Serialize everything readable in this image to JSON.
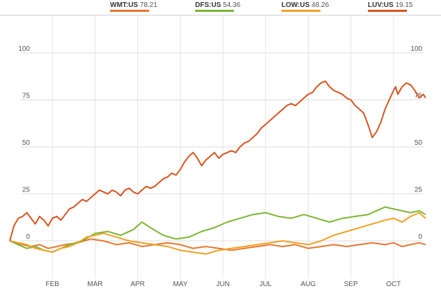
{
  "legend": {
    "items": [
      {
        "symbol": "WMT:US",
        "value": "78.21",
        "color": "#e8762c"
      },
      {
        "symbol": "DFS:US",
        "value": "54.36",
        "color": "#7cb530"
      },
      {
        "symbol": "LOW:US",
        "value": "48.26",
        "color": "#f0a020"
      },
      {
        "symbol": "LUV:US",
        "value": "19.15",
        "color": "#d9521f"
      }
    ]
  },
  "chart_data": {
    "type": "line",
    "title": "",
    "xlabel": "",
    "ylabel": "",
    "x_tick_labels": [
      "FEB",
      "MAR",
      "APR",
      "MAY",
      "JUN",
      "JUL",
      "AUG",
      "SEP",
      "OCT"
    ],
    "x_tick_positions": [
      1,
      2,
      3,
      4,
      5,
      6,
      7,
      8,
      9
    ],
    "xlim": [
      0,
      9.95
    ],
    "y_ticks": [
      0,
      25,
      50,
      75,
      100
    ],
    "ylim": [
      -20,
      120
    ],
    "grid": true,
    "legend_position": "top",
    "series": [
      {
        "name": "WMT:US",
        "color": "#e8762c",
        "x": [
          0,
          0.15,
          0.3,
          0.5,
          0.7,
          0.9,
          1.1,
          1.3,
          1.6,
          1.9,
          2.2,
          2.5,
          2.8,
          3.1,
          3.4,
          3.7,
          4.0,
          4.3,
          4.6,
          4.9,
          5.2,
          5.5,
          5.8,
          6.1,
          6.4,
          6.7,
          7.0,
          7.3,
          7.6,
          7.9,
          8.2,
          8.5,
          8.8,
          9.0,
          9.2,
          9.4,
          9.6,
          9.75
        ],
        "y": [
          0,
          -1,
          -2,
          -3,
          -2,
          -4,
          -3,
          -2,
          -1,
          1,
          0,
          -2,
          -1,
          -3,
          -2,
          -1,
          -2,
          -4,
          -3,
          -4,
          -5,
          -4,
          -3,
          -2,
          -3,
          -2,
          -4,
          -3,
          -2,
          -3,
          -2,
          -1,
          -2,
          -1,
          -3,
          -2,
          -1,
          -2
        ]
      },
      {
        "name": "DFS:US",
        "color": "#7cb530",
        "x": [
          0,
          0.2,
          0.4,
          0.6,
          0.8,
          1.0,
          1.2,
          1.4,
          1.7,
          2.0,
          2.3,
          2.6,
          2.9,
          3.1,
          3.3,
          3.6,
          3.9,
          4.2,
          4.5,
          4.8,
          5.1,
          5.4,
          5.7,
          6.0,
          6.3,
          6.6,
          6.9,
          7.2,
          7.5,
          7.8,
          8.1,
          8.4,
          8.6,
          8.8,
          9.0,
          9.2,
          9.4,
          9.6,
          9.75
        ],
        "y": [
          0,
          -2,
          -4,
          -3,
          -5,
          -6,
          -4,
          -2,
          0,
          4,
          5,
          3,
          6,
          10,
          7,
          3,
          1,
          2,
          5,
          7,
          10,
          12,
          14,
          15,
          13,
          12,
          14,
          12,
          10,
          12,
          13,
          14,
          16,
          18,
          17,
          16,
          15,
          16,
          14
        ]
      },
      {
        "name": "LOW:US",
        "color": "#f0a020",
        "x": [
          0,
          0.2,
          0.4,
          0.6,
          0.8,
          1.0,
          1.2,
          1.4,
          1.6,
          1.8,
          2.0,
          2.2,
          2.5,
          2.8,
          3.1,
          3.4,
          3.7,
          4.0,
          4.3,
          4.6,
          4.9,
          5.2,
          5.5,
          5.8,
          6.1,
          6.4,
          6.7,
          7.0,
          7.3,
          7.6,
          7.9,
          8.2,
          8.5,
          8.8,
          9.0,
          9.2,
          9.4,
          9.6,
          9.75
        ],
        "y": [
          0,
          -1,
          -2,
          -4,
          -5,
          -6,
          -4,
          -3,
          -1,
          2,
          3,
          4,
          2,
          0,
          -1,
          -2,
          -3,
          -5,
          -6,
          -7,
          -5,
          -4,
          -3,
          -2,
          -1,
          0,
          -1,
          -2,
          0,
          3,
          5,
          7,
          9,
          11,
          12,
          10,
          13,
          15,
          12
        ]
      },
      {
        "name": "LUV:US",
        "color": "#d9521f",
        "x": [
          0,
          0.1,
          0.2,
          0.3,
          0.4,
          0.5,
          0.6,
          0.7,
          0.8,
          0.9,
          1.0,
          1.1,
          1.2,
          1.3,
          1.4,
          1.5,
          1.6,
          1.7,
          1.8,
          1.9,
          2.0,
          2.1,
          2.2,
          2.3,
          2.4,
          2.5,
          2.6,
          2.7,
          2.8,
          2.9,
          3.0,
          3.1,
          3.2,
          3.3,
          3.4,
          3.5,
          3.6,
          3.7,
          3.8,
          3.9,
          4.0,
          4.1,
          4.2,
          4.3,
          4.4,
          4.5,
          4.6,
          4.7,
          4.8,
          4.9,
          5.0,
          5.1,
          5.2,
          5.3,
          5.4,
          5.5,
          5.6,
          5.7,
          5.8,
          5.9,
          6.0,
          6.1,
          6.2,
          6.3,
          6.4,
          6.5,
          6.6,
          6.7,
          6.8,
          6.9,
          7.0,
          7.1,
          7.2,
          7.3,
          7.4,
          7.5,
          7.6,
          7.7,
          7.8,
          7.9,
          8.0,
          8.1,
          8.2,
          8.3,
          8.4,
          8.5,
          8.6,
          8.7,
          8.8,
          8.9,
          9.0,
          9.05,
          9.1,
          9.15,
          9.2,
          9.3,
          9.4,
          9.5,
          9.6,
          9.7,
          9.75
        ],
        "y": [
          0,
          8,
          12,
          13,
          15,
          12,
          9,
          13,
          11,
          8,
          12,
          13,
          11,
          14,
          17,
          18,
          20,
          22,
          21,
          23,
          25,
          27,
          26,
          25,
          27,
          26,
          24,
          27,
          28,
          26,
          25,
          27,
          29,
          28,
          29,
          31,
          33,
          34,
          36,
          35,
          38,
          42,
          45,
          47,
          44,
          40,
          43,
          45,
          47,
          44,
          46,
          47,
          48,
          47,
          50,
          52,
          53,
          55,
          57,
          60,
          62,
          64,
          66,
          68,
          70,
          72,
          73,
          72,
          74,
          76,
          78,
          79,
          82,
          84,
          85,
          82,
          80,
          79,
          78,
          76,
          75,
          72,
          70,
          68,
          62,
          55,
          58,
          63,
          70,
          75,
          80,
          82,
          78,
          80,
          82,
          84,
          83,
          80,
          76,
          78,
          76
        ]
      }
    ]
  }
}
